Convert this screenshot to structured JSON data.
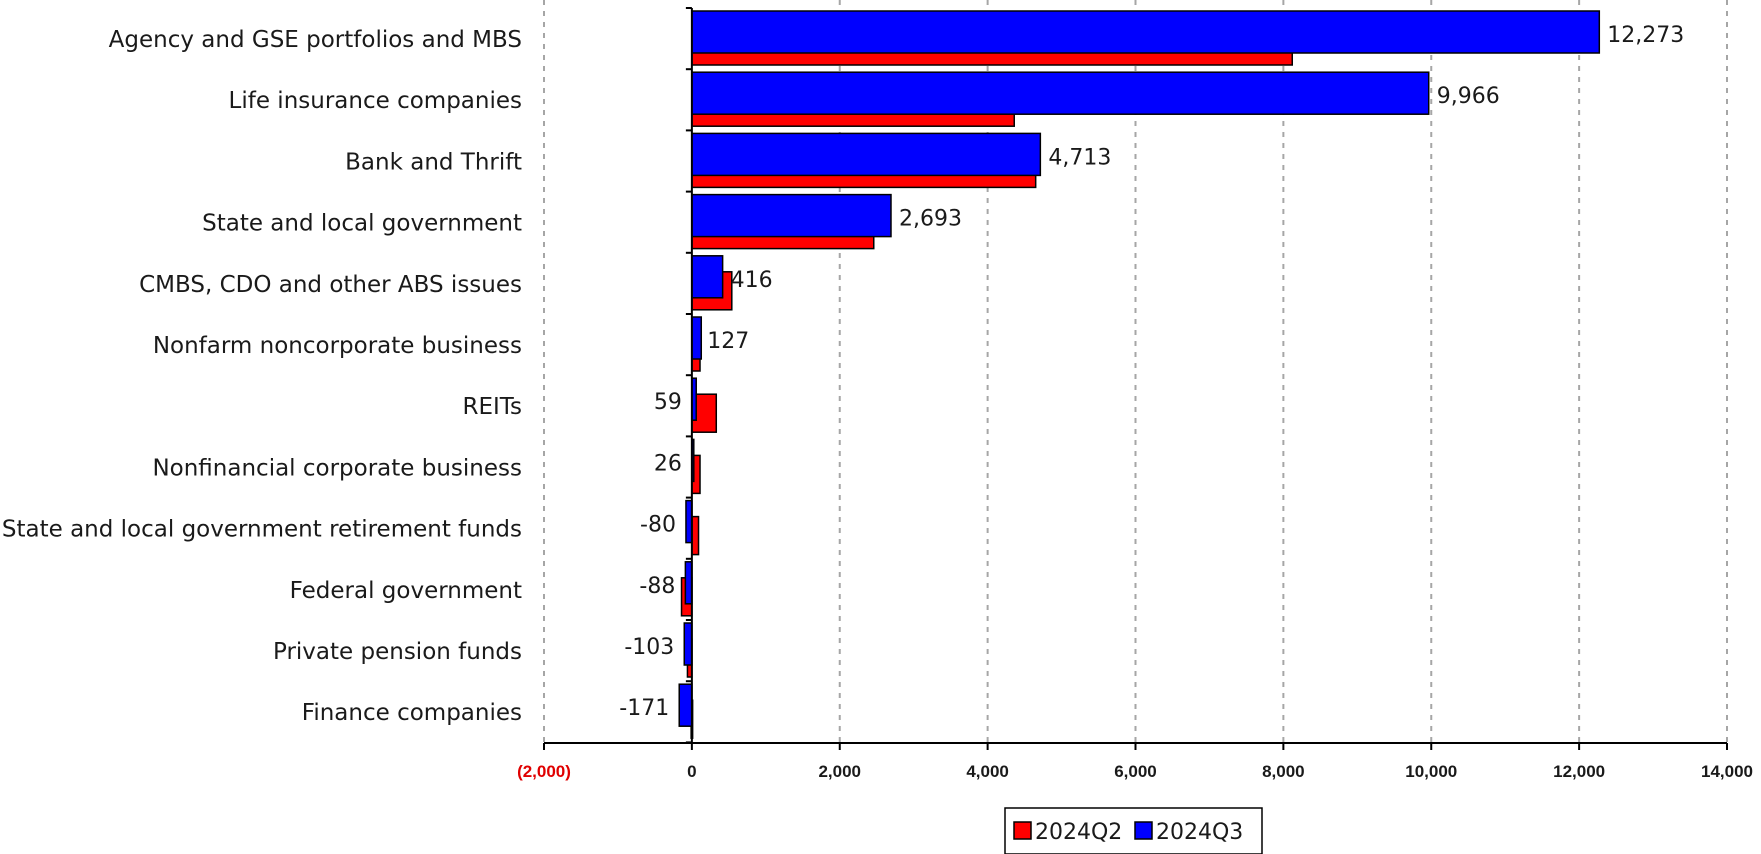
{
  "chart_data": {
    "type": "bar",
    "orientation": "horizontal",
    "title": "",
    "xlabel": "",
    "ylabel": "",
    "categories": [
      "Agency and GSE portfolios and MBS",
      "Life insurance companies",
      "Bank and Thrift",
      "State and local government",
      "CMBS, CDO and other ABS issues",
      "Nonfarm noncorporate business",
      "REITs",
      "Nonfinancial corporate business",
      "State and local government retirement funds",
      "Federal government",
      "Private pension funds",
      "Finance companies"
    ],
    "series": [
      {
        "name": "2024Q2",
        "color": "#ff0000",
        "values": [
          8120,
          4360,
          4650,
          2460,
          540,
          110,
          330,
          110,
          90,
          -140,
          -60,
          -10
        ]
      },
      {
        "name": "2024Q3",
        "color": "#0000ff",
        "values": [
          12273,
          9966,
          4713,
          2693,
          416,
          127,
          59,
          26,
          -80,
          -88,
          -103,
          -171
        ]
      }
    ],
    "data_labels": [
      "12,273",
      "9,966",
      "4,713",
      "2,693",
      "416",
      "127",
      "59",
      "26",
      "-80",
      "-88",
      "-103",
      "-171"
    ],
    "xlim": [
      -2000,
      14000
    ],
    "xticks": [
      -2000,
      0,
      2000,
      4000,
      6000,
      8000,
      10000,
      12000,
      14000
    ],
    "xtick_labels": [
      "(2,000)",
      "0",
      "2,000",
      "4,000",
      "6,000",
      "8,000",
      "10,000",
      "12,000",
      "14,000"
    ],
    "negative_tick_color": "#e00000",
    "grid": "vertical dashed",
    "legend_position": "bottom"
  }
}
